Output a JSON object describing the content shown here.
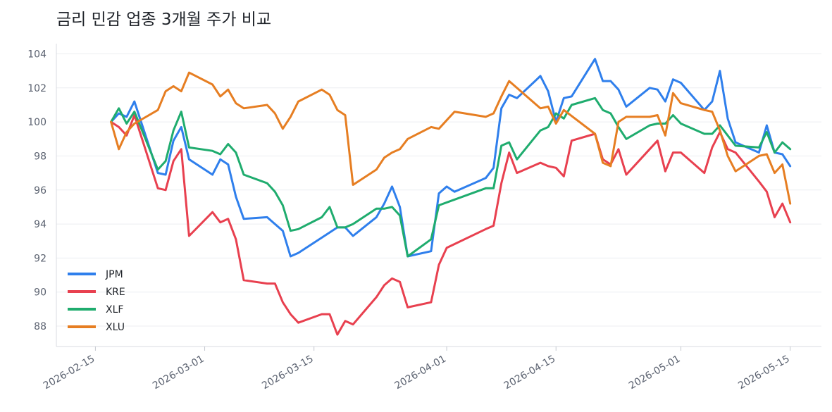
{
  "chart_data": {
    "type": "line",
    "title": "금리 민감 업종 3개월 주가 비교",
    "xlabel": "",
    "ylabel": "",
    "ylim": [
      86.8,
      104.6
    ],
    "xlim": [
      "2026-02-10",
      "2026-05-19"
    ],
    "y_ticks": [
      88,
      90,
      92,
      94,
      96,
      98,
      100,
      102,
      104
    ],
    "x_ticks": [
      "2026-02-15",
      "2026-03-01",
      "2026-03-15",
      "2026-04-01",
      "2026-04-15",
      "2026-05-01",
      "2026-05-15"
    ],
    "grid": "horizontal",
    "legend_position": "lower-left",
    "series": [
      {
        "name": "JPM",
        "color": "#2f7fec",
        "points": [
          [
            "2026-02-17",
            100.0
          ],
          [
            "2026-02-18",
            100.5
          ],
          [
            "2026-02-19",
            100.3
          ],
          [
            "2026-02-20",
            101.2
          ],
          [
            "2026-02-23",
            97.0
          ],
          [
            "2026-02-24",
            96.9
          ],
          [
            "2026-02-25",
            98.9
          ],
          [
            "2026-02-26",
            99.7
          ],
          [
            "2026-02-27",
            97.8
          ],
          [
            "2026-03-02",
            96.9
          ],
          [
            "2026-03-03",
            97.8
          ],
          [
            "2026-03-04",
            97.5
          ],
          [
            "2026-03-05",
            95.6
          ],
          [
            "2026-03-06",
            94.3
          ],
          [
            "2026-03-09",
            94.4
          ],
          [
            "2026-03-10",
            94.0
          ],
          [
            "2026-03-11",
            93.6
          ],
          [
            "2026-03-12",
            92.1
          ],
          [
            "2026-03-13",
            92.3
          ],
          [
            "2026-03-16",
            93.2
          ],
          [
            "2026-03-17",
            93.5
          ],
          [
            "2026-03-18",
            93.8
          ],
          [
            "2026-03-19",
            93.8
          ],
          [
            "2026-03-20",
            93.3
          ],
          [
            "2026-03-23",
            94.4
          ],
          [
            "2026-03-24",
            95.2
          ],
          [
            "2026-03-25",
            96.2
          ],
          [
            "2026-03-26",
            95.0
          ],
          [
            "2026-03-27",
            92.1
          ],
          [
            "2026-03-30",
            92.4
          ],
          [
            "2026-03-31",
            95.8
          ],
          [
            "2026-04-01",
            96.2
          ],
          [
            "2026-04-02",
            95.9
          ],
          [
            "2026-04-06",
            96.7
          ],
          [
            "2026-04-07",
            97.3
          ],
          [
            "2026-04-08",
            100.8
          ],
          [
            "2026-04-09",
            101.6
          ],
          [
            "2026-04-10",
            101.4
          ],
          [
            "2026-04-13",
            102.7
          ],
          [
            "2026-04-14",
            101.8
          ],
          [
            "2026-04-15",
            100.0
          ],
          [
            "2026-04-16",
            101.4
          ],
          [
            "2026-04-17",
            101.5
          ],
          [
            "2026-04-20",
            103.7
          ],
          [
            "2026-04-21",
            102.4
          ],
          [
            "2026-04-22",
            102.4
          ],
          [
            "2026-04-23",
            101.9
          ],
          [
            "2026-04-24",
            100.9
          ],
          [
            "2026-04-27",
            102.0
          ],
          [
            "2026-04-28",
            101.9
          ],
          [
            "2026-04-29",
            101.2
          ],
          [
            "2026-04-30",
            102.5
          ],
          [
            "2026-05-01",
            102.3
          ],
          [
            "2026-05-04",
            100.7
          ],
          [
            "2026-05-05",
            101.2
          ],
          [
            "2026-05-06",
            103.0
          ],
          [
            "2026-05-07",
            100.2
          ],
          [
            "2026-05-08",
            98.8
          ],
          [
            "2026-05-11",
            98.2
          ],
          [
            "2026-05-12",
            99.8
          ],
          [
            "2026-05-13",
            98.2
          ],
          [
            "2026-05-14",
            98.1
          ],
          [
            "2026-05-15",
            97.4
          ]
        ]
      },
      {
        "name": "KRE",
        "color": "#e8404f",
        "points": [
          [
            "2026-02-17",
            100.0
          ],
          [
            "2026-02-18",
            99.7
          ],
          [
            "2026-02-19",
            99.2
          ],
          [
            "2026-02-20",
            100.4
          ],
          [
            "2026-02-23",
            96.1
          ],
          [
            "2026-02-24",
            96.0
          ],
          [
            "2026-02-25",
            97.7
          ],
          [
            "2026-02-26",
            98.4
          ],
          [
            "2026-02-27",
            93.3
          ],
          [
            "2026-03-02",
            94.7
          ],
          [
            "2026-03-03",
            94.1
          ],
          [
            "2026-03-04",
            94.3
          ],
          [
            "2026-03-05",
            93.1
          ],
          [
            "2026-03-06",
            90.7
          ],
          [
            "2026-03-09",
            90.5
          ],
          [
            "2026-03-10",
            90.5
          ],
          [
            "2026-03-11",
            89.4
          ],
          [
            "2026-03-12",
            88.7
          ],
          [
            "2026-03-13",
            88.2
          ],
          [
            "2026-03-16",
            88.7
          ],
          [
            "2026-03-17",
            88.7
          ],
          [
            "2026-03-18",
            87.5
          ],
          [
            "2026-03-19",
            88.3
          ],
          [
            "2026-03-20",
            88.1
          ],
          [
            "2026-03-23",
            89.7
          ],
          [
            "2026-03-24",
            90.4
          ],
          [
            "2026-03-25",
            90.8
          ],
          [
            "2026-03-26",
            90.6
          ],
          [
            "2026-03-27",
            89.1
          ],
          [
            "2026-03-30",
            89.4
          ],
          [
            "2026-03-31",
            91.6
          ],
          [
            "2026-04-01",
            92.6
          ],
          [
            "2026-04-06",
            93.7
          ],
          [
            "2026-04-07",
            93.9
          ],
          [
            "2026-04-08",
            96.4
          ],
          [
            "2026-04-09",
            98.2
          ],
          [
            "2026-04-10",
            97.0
          ],
          [
            "2026-04-13",
            97.6
          ],
          [
            "2026-04-14",
            97.4
          ],
          [
            "2026-04-15",
            97.3
          ],
          [
            "2026-04-16",
            96.8
          ],
          [
            "2026-04-17",
            98.9
          ],
          [
            "2026-04-20",
            99.3
          ],
          [
            "2026-04-21",
            97.8
          ],
          [
            "2026-04-22",
            97.5
          ],
          [
            "2026-04-23",
            98.4
          ],
          [
            "2026-04-24",
            96.9
          ],
          [
            "2026-04-27",
            98.4
          ],
          [
            "2026-04-28",
            98.9
          ],
          [
            "2026-04-29",
            97.1
          ],
          [
            "2026-04-30",
            98.2
          ],
          [
            "2026-05-01",
            98.2
          ],
          [
            "2026-05-04",
            97.0
          ],
          [
            "2026-05-05",
            98.5
          ],
          [
            "2026-05-06",
            99.4
          ],
          [
            "2026-05-07",
            98.4
          ],
          [
            "2026-05-08",
            98.2
          ],
          [
            "2026-05-11",
            96.5
          ],
          [
            "2026-05-12",
            95.9
          ],
          [
            "2026-05-13",
            94.4
          ],
          [
            "2026-05-14",
            95.2
          ],
          [
            "2026-05-15",
            94.1
          ]
        ]
      },
      {
        "name": "XLF",
        "color": "#1fac6e",
        "points": [
          [
            "2026-02-17",
            100.0
          ],
          [
            "2026-02-18",
            100.8
          ],
          [
            "2026-02-19",
            99.9
          ],
          [
            "2026-02-20",
            100.6
          ],
          [
            "2026-02-23",
            97.2
          ],
          [
            "2026-02-24",
            97.7
          ],
          [
            "2026-02-25",
            99.5
          ],
          [
            "2026-02-26",
            100.6
          ],
          [
            "2026-02-27",
            98.5
          ],
          [
            "2026-03-02",
            98.3
          ],
          [
            "2026-03-03",
            98.1
          ],
          [
            "2026-03-04",
            98.7
          ],
          [
            "2026-03-05",
            98.2
          ],
          [
            "2026-03-06",
            96.9
          ],
          [
            "2026-03-09",
            96.4
          ],
          [
            "2026-03-10",
            95.9
          ],
          [
            "2026-03-11",
            95.1
          ],
          [
            "2026-03-12",
            93.6
          ],
          [
            "2026-03-13",
            93.7
          ],
          [
            "2026-03-16",
            94.4
          ],
          [
            "2026-03-17",
            95.0
          ],
          [
            "2026-03-18",
            93.8
          ],
          [
            "2026-03-19",
            93.8
          ],
          [
            "2026-03-20",
            94.0
          ],
          [
            "2026-03-23",
            94.9
          ],
          [
            "2026-03-24",
            94.9
          ],
          [
            "2026-03-25",
            95.0
          ],
          [
            "2026-03-26",
            94.5
          ],
          [
            "2026-03-27",
            92.1
          ],
          [
            "2026-03-30",
            93.1
          ],
          [
            "2026-03-31",
            95.1
          ],
          [
            "2026-04-06",
            96.1
          ],
          [
            "2026-04-07",
            96.1
          ],
          [
            "2026-04-08",
            98.6
          ],
          [
            "2026-04-09",
            98.8
          ],
          [
            "2026-04-10",
            97.8
          ],
          [
            "2026-04-13",
            99.5
          ],
          [
            "2026-04-14",
            99.7
          ],
          [
            "2026-04-15",
            100.5
          ],
          [
            "2026-04-16",
            100.2
          ],
          [
            "2026-04-17",
            101.0
          ],
          [
            "2026-04-20",
            101.4
          ],
          [
            "2026-04-21",
            100.7
          ],
          [
            "2026-04-22",
            100.5
          ],
          [
            "2026-04-23",
            99.7
          ],
          [
            "2026-04-24",
            99.0
          ],
          [
            "2026-04-27",
            99.8
          ],
          [
            "2026-04-28",
            99.9
          ],
          [
            "2026-04-29",
            99.9
          ],
          [
            "2026-04-30",
            100.4
          ],
          [
            "2026-05-01",
            99.9
          ],
          [
            "2026-05-04",
            99.3
          ],
          [
            "2026-05-05",
            99.3
          ],
          [
            "2026-05-06",
            99.8
          ],
          [
            "2026-05-07",
            99.2
          ],
          [
            "2026-05-08",
            98.6
          ],
          [
            "2026-05-11",
            98.5
          ],
          [
            "2026-05-12",
            99.4
          ],
          [
            "2026-05-13",
            98.2
          ],
          [
            "2026-05-14",
            98.8
          ],
          [
            "2026-05-15",
            98.4
          ]
        ]
      },
      {
        "name": "XLU",
        "color": "#e67e22",
        "points": [
          [
            "2026-02-17",
            100.0
          ],
          [
            "2026-02-18",
            98.4
          ],
          [
            "2026-02-19",
            99.4
          ],
          [
            "2026-02-20",
            99.9
          ],
          [
            "2026-02-23",
            100.7
          ],
          [
            "2026-02-24",
            101.8
          ],
          [
            "2026-02-25",
            102.1
          ],
          [
            "2026-02-26",
            101.8
          ],
          [
            "2026-02-27",
            102.9
          ],
          [
            "2026-03-02",
            102.2
          ],
          [
            "2026-03-03",
            101.5
          ],
          [
            "2026-03-04",
            101.9
          ],
          [
            "2026-03-05",
            101.1
          ],
          [
            "2026-03-06",
            100.8
          ],
          [
            "2026-03-09",
            101.0
          ],
          [
            "2026-03-10",
            100.5
          ],
          [
            "2026-03-11",
            99.6
          ],
          [
            "2026-03-12",
            100.3
          ],
          [
            "2026-03-13",
            101.2
          ],
          [
            "2026-03-16",
            101.9
          ],
          [
            "2026-03-17",
            101.6
          ],
          [
            "2026-03-18",
            100.7
          ],
          [
            "2026-03-19",
            100.4
          ],
          [
            "2026-03-20",
            96.3
          ],
          [
            "2026-03-23",
            97.2
          ],
          [
            "2026-03-24",
            97.9
          ],
          [
            "2026-03-25",
            98.2
          ],
          [
            "2026-03-26",
            98.4
          ],
          [
            "2026-03-27",
            99.0
          ],
          [
            "2026-03-30",
            99.7
          ],
          [
            "2026-03-31",
            99.6
          ],
          [
            "2026-04-01",
            100.1
          ],
          [
            "2026-04-02",
            100.6
          ],
          [
            "2026-04-06",
            100.3
          ],
          [
            "2026-04-07",
            100.5
          ],
          [
            "2026-04-08",
            101.5
          ],
          [
            "2026-04-09",
            102.4
          ],
          [
            "2026-04-13",
            100.8
          ],
          [
            "2026-04-14",
            100.9
          ],
          [
            "2026-04-15",
            99.9
          ],
          [
            "2026-04-16",
            100.7
          ],
          [
            "2026-04-20",
            99.3
          ],
          [
            "2026-04-21",
            97.6
          ],
          [
            "2026-04-22",
            97.4
          ],
          [
            "2026-04-23",
            100.0
          ],
          [
            "2026-04-24",
            100.3
          ],
          [
            "2026-04-27",
            100.3
          ],
          [
            "2026-04-28",
            100.4
          ],
          [
            "2026-04-29",
            99.2
          ],
          [
            "2026-04-30",
            101.7
          ],
          [
            "2026-05-01",
            101.1
          ],
          [
            "2026-05-04",
            100.7
          ],
          [
            "2026-05-05",
            100.6
          ],
          [
            "2026-05-06",
            99.5
          ],
          [
            "2026-05-07",
            98.0
          ],
          [
            "2026-05-08",
            97.1
          ],
          [
            "2026-05-11",
            98.0
          ],
          [
            "2026-05-12",
            98.1
          ],
          [
            "2026-05-13",
            97.0
          ],
          [
            "2026-05-14",
            97.5
          ],
          [
            "2026-05-15",
            95.2
          ]
        ]
      }
    ]
  }
}
